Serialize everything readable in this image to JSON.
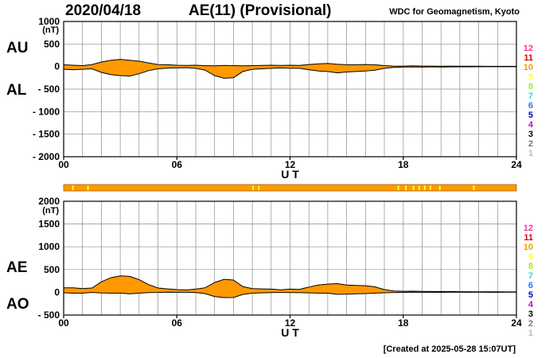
{
  "header": {
    "date": "2020/04/18",
    "title": "AE(11) (Provisional)",
    "source": "WDC for Geomagnetism, Kyoto",
    "created": "[Created at 2025-05-28 15:07UT]"
  },
  "axis_labels": {
    "au": "AU",
    "al": "AL",
    "ae": "AE",
    "ao": "AO",
    "unit": "(nT)"
  },
  "colors": {
    "fill": "#ff9900",
    "line": "#000000",
    "grid": "#8c8c8c",
    "status_bar": "#ff9900",
    "status_marks": "#ffff33"
  },
  "legend": [
    {
      "label": "12",
      "color": "#ff3399"
    },
    {
      "label": "11",
      "color": "#dd0000"
    },
    {
      "label": "10",
      "color": "#ff9900"
    },
    {
      "label": "9",
      "color": "#ffff33"
    },
    {
      "label": "8",
      "color": "#99ee22"
    },
    {
      "label": "7",
      "color": "#22dddd"
    },
    {
      "label": "6",
      "color": "#2277ff"
    },
    {
      "label": "5",
      "color": "#0000cc"
    },
    {
      "label": "4",
      "color": "#cc00cc"
    },
    {
      "label": "3",
      "color": "#000000"
    },
    {
      "label": "2",
      "color": "#777777"
    },
    {
      "label": "1",
      "color": "#bbbbbb"
    }
  ],
  "status_marks_ut": [
    0.45,
    1.25,
    10.0,
    10.3,
    17.7,
    18.1,
    18.5,
    18.8,
    19.1,
    19.4,
    19.9,
    21.7
  ],
  "chart_data": [
    {
      "type": "area",
      "name": "AU/AL",
      "xlabel": "U T",
      "x_ticks": [
        "00",
        "06",
        "12",
        "18",
        "24"
      ],
      "xlim": [
        0,
        24
      ],
      "ylim": [
        -2000,
        1000
      ],
      "y_ticks": [
        "1000",
        "500",
        "0",
        "- 500",
        "- 1000",
        "- 1500",
        "- 2000"
      ],
      "x": [
        0,
        0.5,
        1,
        1.5,
        2,
        2.5,
        3,
        3.5,
        4,
        4.5,
        5,
        5.5,
        6,
        6.5,
        7,
        7.5,
        8,
        8.5,
        9,
        9.5,
        10,
        10.5,
        11,
        11.5,
        12,
        12.5,
        13,
        13.5,
        14,
        14.5,
        15,
        15.5,
        16,
        16.5,
        17,
        17.5,
        18,
        18.5,
        19,
        19.5,
        20,
        20.5,
        21,
        21.5,
        22,
        22.5,
        23,
        23.5,
        24
      ],
      "series": [
        {
          "name": "AU",
          "values": [
            40,
            30,
            20,
            45,
            100,
            140,
            160,
            140,
            120,
            80,
            45,
            40,
            30,
            25,
            30,
            20,
            15,
            25,
            20,
            15,
            20,
            25,
            30,
            25,
            30,
            25,
            45,
            60,
            70,
            50,
            40,
            40,
            45,
            40,
            20,
            10,
            10,
            15,
            10,
            10,
            8,
            10,
            8,
            6,
            6,
            5,
            5,
            5,
            5
          ]
        },
        {
          "name": "AL",
          "values": [
            -60,
            -70,
            -60,
            -50,
            -130,
            -180,
            -200,
            -210,
            -160,
            -90,
            -50,
            -35,
            -30,
            -25,
            -40,
            -80,
            -200,
            -260,
            -250,
            -110,
            -60,
            -50,
            -40,
            -30,
            -40,
            -40,
            -70,
            -100,
            -110,
            -140,
            -120,
            -110,
            -100,
            -80,
            -40,
            -20,
            -12,
            -10,
            -10,
            -8,
            -10,
            -8,
            -6,
            -6,
            -5,
            -5,
            -5,
            -4,
            -4
          ]
        }
      ]
    },
    {
      "type": "area",
      "name": "AE/AO",
      "xlabel": "U T",
      "x_ticks": [
        "00",
        "06",
        "12",
        "18",
        "24"
      ],
      "xlim": [
        0,
        24
      ],
      "ylim": [
        -500,
        2000
      ],
      "y_ticks": [
        "2000",
        "1500",
        "1000",
        "500",
        "0",
        "- 500"
      ],
      "x": [
        0,
        0.5,
        1,
        1.5,
        2,
        2.5,
        3,
        3.5,
        4,
        4.5,
        5,
        5.5,
        6,
        6.5,
        7,
        7.5,
        8,
        8.5,
        9,
        9.5,
        10,
        10.5,
        11,
        11.5,
        12,
        12.5,
        13,
        13.5,
        14,
        14.5,
        15,
        15.5,
        16,
        16.5,
        17,
        17.5,
        18,
        18.5,
        19,
        19.5,
        20,
        20.5,
        21,
        21.5,
        22,
        22.5,
        23,
        23.5,
        24
      ],
      "series": [
        {
          "name": "AE",
          "values": [
            100,
            100,
            80,
            95,
            230,
            320,
            360,
            350,
            280,
            170,
            95,
            75,
            60,
            50,
            70,
            100,
            215,
            285,
            270,
            125,
            80,
            75,
            70,
            55,
            70,
            65,
            115,
            160,
            180,
            190,
            160,
            150,
            145,
            120,
            60,
            30,
            22,
            25,
            20,
            18,
            18,
            18,
            14,
            12,
            11,
            10,
            10,
            9,
            9
          ]
        },
        {
          "name": "AO",
          "values": [
            -10,
            -20,
            -20,
            -3,
            -15,
            -20,
            -20,
            -35,
            -20,
            -5,
            -3,
            3,
            0,
            0,
            -5,
            -30,
            -93,
            -118,
            -115,
            -48,
            -20,
            -13,
            -5,
            -3,
            -5,
            -8,
            -13,
            -20,
            -20,
            -45,
            -40,
            -35,
            -28,
            -20,
            -10,
            -5,
            -1,
            3,
            0,
            1,
            -1,
            1,
            1,
            0,
            1,
            0,
            0,
            1,
            1
          ]
        }
      ]
    }
  ]
}
